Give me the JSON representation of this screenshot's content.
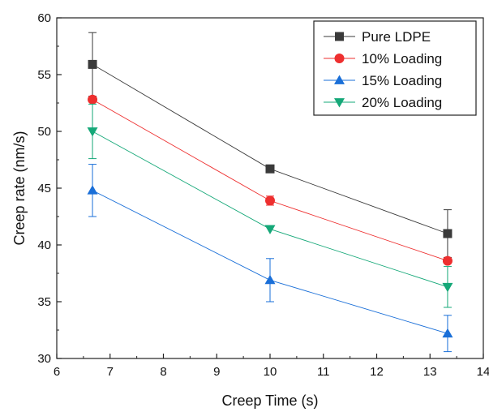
{
  "chart_data": {
    "type": "line",
    "title": "",
    "xlabel": "Creep Time (s)",
    "ylabel": "Creep rate (nm/s)",
    "xlim": [
      6,
      14
    ],
    "ylim": [
      30,
      60
    ],
    "x_ticks": [
      "6",
      "7",
      "8",
      "9",
      "10",
      "11",
      "12",
      "13",
      "14"
    ],
    "y_ticks": [
      "30",
      "35",
      "40",
      "45",
      "50",
      "55",
      "60"
    ],
    "x": [
      6.67,
      10.0,
      13.33
    ],
    "grid": false,
    "legend_position": "top-right",
    "series": [
      {
        "name": "Pure LDPE",
        "marker": "square",
        "color": "#3a3a3a",
        "values": [
          55.9,
          46.7,
          41.0
        ],
        "error": [
          2.8,
          0,
          2.1
        ]
      },
      {
        "name": "10% Loading",
        "marker": "circle",
        "color": "#ee2f2f",
        "values": [
          52.8,
          43.9,
          38.6
        ],
        "error": [
          0,
          0.4,
          0
        ]
      },
      {
        "name": "15% Loading",
        "marker": "triangle-up",
        "color": "#1a6fd8",
        "values": [
          44.8,
          36.9,
          32.2
        ],
        "error": [
          2.3,
          1.9,
          1.6
        ]
      },
      {
        "name": "20% Loading",
        "marker": "triangle-down",
        "color": "#15a878",
        "values": [
          50.0,
          41.4,
          36.3
        ],
        "error": [
          2.4,
          0,
          1.8
        ]
      }
    ]
  }
}
